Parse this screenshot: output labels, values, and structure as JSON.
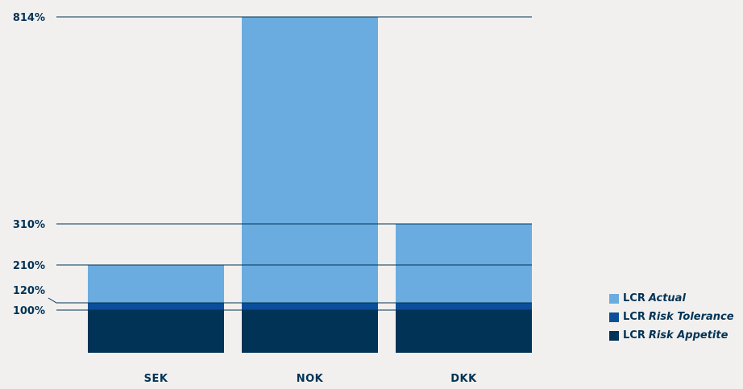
{
  "chart_data": {
    "type": "bar",
    "stacked": true,
    "categories": [
      "SEK",
      "NOK",
      "DKK"
    ],
    "series": [
      {
        "name": "LCR Risk Appetite",
        "prefix": "LCR",
        "label": "Risk Appetite",
        "color": "#003356",
        "values": [
          100,
          100,
          100
        ]
      },
      {
        "name": "LCR Risk Tolerance",
        "prefix": "LCR",
        "label": "Risk Tolerance",
        "color": "#0b4f9a",
        "values": [
          20,
          20,
          20
        ]
      },
      {
        "name": "LCR Actual",
        "prefix": "LCR",
        "label": "Actual",
        "color": "#6aace0",
        "values": [
          90,
          694,
          190
        ]
      }
    ],
    "totals": [
      210,
      814,
      310
    ],
    "reference_lines": [
      {
        "label": "814%",
        "value": 814
      },
      {
        "label": "310%",
        "value": 310
      },
      {
        "label": "210%",
        "value": 210
      },
      {
        "label": "120%",
        "value": 120
      },
      {
        "label": "100%",
        "value": 100
      }
    ],
    "legend_position": "bottom-right",
    "xlabel": "",
    "ylabel": "",
    "grid": false
  }
}
